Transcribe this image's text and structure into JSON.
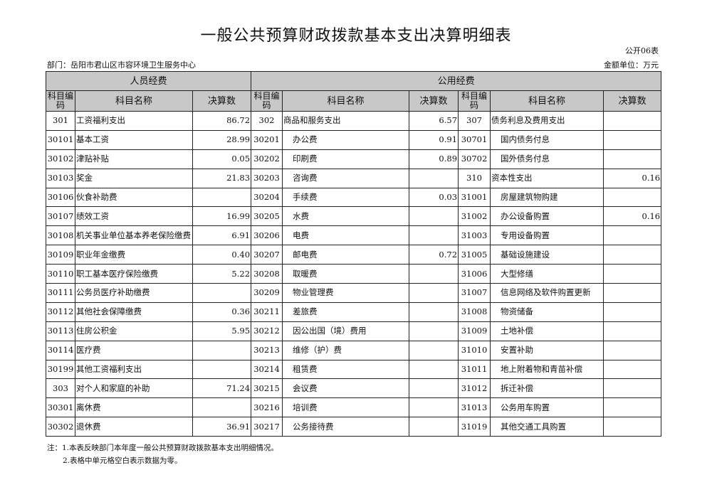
{
  "title": "一般公共预算财政拨款基本支出决算明细表",
  "form_no": "公开06表",
  "department": "部门：岳阳市君山区市容环境卫生服务中心",
  "unit": "金额单位：万元",
  "groups": {
    "personnel": "人员经费",
    "public": "公用经费"
  },
  "columns": {
    "code": "科目编码",
    "name": "科目名称",
    "amount": "决算数"
  },
  "rows": [
    [
      [
        "301",
        "工资福利支出",
        "86.72"
      ],
      [
        "302",
        "商品和服务支出",
        "6.57"
      ],
      [
        "307",
        "债务利息及费用支出",
        ""
      ]
    ],
    [
      [
        "30101",
        "基本工资",
        "28.99"
      ],
      [
        "30201",
        "办公费",
        "0.91"
      ],
      [
        "30701",
        "国内债务付息",
        ""
      ]
    ],
    [
      [
        "30102",
        "津贴补贴",
        "0.05"
      ],
      [
        "30202",
        "印刷费",
        "0.89"
      ],
      [
        "30702",
        "国外债务付息",
        ""
      ]
    ],
    [
      [
        "30103",
        "奖金",
        "21.83"
      ],
      [
        "30203",
        "咨询费",
        ""
      ],
      [
        "310",
        "资本性支出",
        "0.16"
      ]
    ],
    [
      [
        "30106",
        "伙食补助费",
        ""
      ],
      [
        "30204",
        "手续费",
        "0.03"
      ],
      [
        "31001",
        "房屋建筑物购建",
        ""
      ]
    ],
    [
      [
        "30107",
        "绩效工资",
        "16.99"
      ],
      [
        "30205",
        "水费",
        ""
      ],
      [
        "31002",
        "办公设备购置",
        "0.16"
      ]
    ],
    [
      [
        "30108",
        "机关事业单位基本养老保险缴费",
        "6.91"
      ],
      [
        "30206",
        "电费",
        ""
      ],
      [
        "31003",
        "专用设备购置",
        ""
      ]
    ],
    [
      [
        "30109",
        "职业年金缴费",
        "0.40"
      ],
      [
        "30207",
        "邮电费",
        "0.72"
      ],
      [
        "31005",
        "基础设施建设",
        ""
      ]
    ],
    [
      [
        "30110",
        "职工基本医疗保险缴费",
        "5.22"
      ],
      [
        "30208",
        "取暖费",
        ""
      ],
      [
        "31006",
        "大型修缮",
        ""
      ]
    ],
    [
      [
        "30111",
        "公务员医疗补助缴费",
        ""
      ],
      [
        "30209",
        "物业管理费",
        ""
      ],
      [
        "31007",
        "信息网络及软件购置更新",
        ""
      ]
    ],
    [
      [
        "30112",
        "其他社会保障缴费",
        "0.36"
      ],
      [
        "30211",
        "差旅费",
        ""
      ],
      [
        "31008",
        "物资储备",
        ""
      ]
    ],
    [
      [
        "30113",
        "住房公积金",
        "5.95"
      ],
      [
        "30212",
        "因公出国（境）费用",
        ""
      ],
      [
        "31009",
        "土地补偿",
        ""
      ]
    ],
    [
      [
        "30114",
        "医疗费",
        ""
      ],
      [
        "30213",
        "维修（护）费",
        ""
      ],
      [
        "31010",
        "安置补助",
        ""
      ]
    ],
    [
      [
        "30199",
        "其他工资福利支出",
        ""
      ],
      [
        "30214",
        "租赁费",
        ""
      ],
      [
        "31011",
        "地上附着物和青苗补偿",
        ""
      ]
    ],
    [
      [
        "303",
        "对个人和家庭的补助",
        "71.24"
      ],
      [
        "30215",
        "会议费",
        ""
      ],
      [
        "31012",
        "拆迁补偿",
        ""
      ]
    ],
    [
      [
        "30301",
        "离休费",
        ""
      ],
      [
        "30216",
        "培训费",
        ""
      ],
      [
        "31013",
        "公务用车购置",
        ""
      ]
    ],
    [
      [
        "30302",
        "退休费",
        "36.91"
      ],
      [
        "30217",
        "公务接待费",
        ""
      ],
      [
        "31019",
        "其他交通工具购置",
        ""
      ]
    ]
  ],
  "notes": [
    "注：1.本表反映部门本年度一般公共预算财政拨款基本支出明细情况。",
    "2.表格中单元格空白表示数据为零。"
  ]
}
